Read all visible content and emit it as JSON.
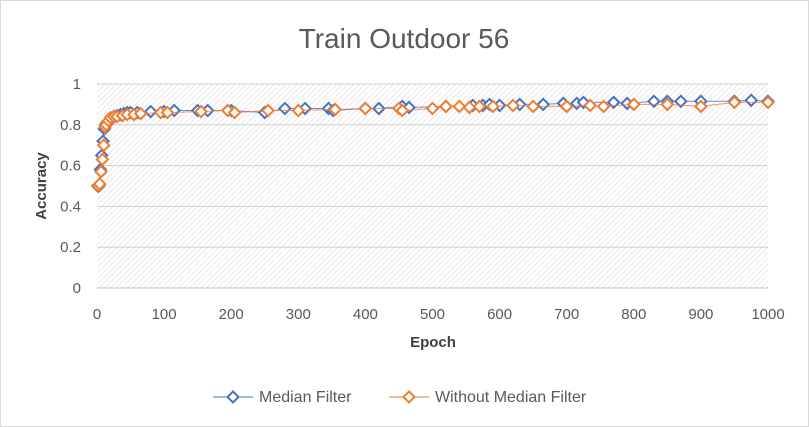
{
  "chart_data": {
    "type": "scatter",
    "title": "Train Outdoor 56",
    "xlabel": "Epoch",
    "ylabel": "Accuracy",
    "xlim": [
      0,
      1000
    ],
    "ylim": [
      0,
      1
    ],
    "xticks": [
      "0",
      "100",
      "200",
      "300",
      "400",
      "500",
      "600",
      "700",
      "800",
      "900",
      "1000"
    ],
    "yticks": [
      "0",
      "0.2",
      "0.4",
      "0.6",
      "0.8",
      "1"
    ],
    "grid": true,
    "legend_position": "bottom",
    "series": [
      {
        "name": "Median Filter",
        "color": "#4472c4",
        "marker": "diamond-open",
        "points": [
          [
            1,
            0.5
          ],
          [
            3,
            0.5
          ],
          [
            5,
            0.58
          ],
          [
            7,
            0.65
          ],
          [
            9,
            0.72
          ],
          [
            11,
            0.78
          ],
          [
            13,
            0.8
          ],
          [
            15,
            0.81
          ],
          [
            18,
            0.82
          ],
          [
            22,
            0.83
          ],
          [
            26,
            0.84
          ],
          [
            30,
            0.845
          ],
          [
            35,
            0.85
          ],
          [
            40,
            0.855
          ],
          [
            45,
            0.86
          ],
          [
            50,
            0.86
          ],
          [
            60,
            0.86
          ],
          [
            80,
            0.865
          ],
          [
            100,
            0.865
          ],
          [
            115,
            0.87
          ],
          [
            150,
            0.87
          ],
          [
            165,
            0.87
          ],
          [
            200,
            0.87
          ],
          [
            250,
            0.86
          ],
          [
            280,
            0.88
          ],
          [
            310,
            0.88
          ],
          [
            345,
            0.88
          ],
          [
            352,
            0.87
          ],
          [
            400,
            0.88
          ],
          [
            420,
            0.88
          ],
          [
            455,
            0.89
          ],
          [
            465,
            0.885
          ],
          [
            520,
            0.89
          ],
          [
            560,
            0.895
          ],
          [
            575,
            0.895
          ],
          [
            585,
            0.9
          ],
          [
            600,
            0.895
          ],
          [
            630,
            0.9
          ],
          [
            665,
            0.9
          ],
          [
            695,
            0.905
          ],
          [
            715,
            0.905
          ],
          [
            725,
            0.91
          ],
          [
            770,
            0.91
          ],
          [
            790,
            0.905
          ],
          [
            830,
            0.915
          ],
          [
            850,
            0.915
          ],
          [
            870,
            0.915
          ],
          [
            900,
            0.915
          ],
          [
            950,
            0.915
          ],
          [
            975,
            0.92
          ],
          [
            1000,
            0.915
          ]
        ]
      },
      {
        "name": "Without Median Filter",
        "color": "#ed7d31",
        "marker": "diamond-open",
        "points": [
          [
            2,
            0.5
          ],
          [
            4,
            0.51
          ],
          [
            6,
            0.57
          ],
          [
            8,
            0.63
          ],
          [
            10,
            0.7
          ],
          [
            12,
            0.79
          ],
          [
            14,
            0.8
          ],
          [
            17,
            0.82
          ],
          [
            20,
            0.835
          ],
          [
            25,
            0.84
          ],
          [
            30,
            0.84
          ],
          [
            38,
            0.845
          ],
          [
            45,
            0.85
          ],
          [
            55,
            0.85
          ],
          [
            65,
            0.855
          ],
          [
            95,
            0.86
          ],
          [
            105,
            0.86
          ],
          [
            155,
            0.865
          ],
          [
            195,
            0.87
          ],
          [
            205,
            0.86
          ],
          [
            255,
            0.87
          ],
          [
            300,
            0.87
          ],
          [
            355,
            0.875
          ],
          [
            400,
            0.88
          ],
          [
            450,
            0.88
          ],
          [
            455,
            0.87
          ],
          [
            500,
            0.88
          ],
          [
            520,
            0.89
          ],
          [
            540,
            0.89
          ],
          [
            555,
            0.885
          ],
          [
            570,
            0.89
          ],
          [
            590,
            0.89
          ],
          [
            620,
            0.895
          ],
          [
            650,
            0.89
          ],
          [
            700,
            0.89
          ],
          [
            735,
            0.895
          ],
          [
            755,
            0.89
          ],
          [
            800,
            0.9
          ],
          [
            850,
            0.9
          ],
          [
            900,
            0.89
          ],
          [
            950,
            0.91
          ],
          [
            1000,
            0.91
          ]
        ]
      }
    ]
  }
}
